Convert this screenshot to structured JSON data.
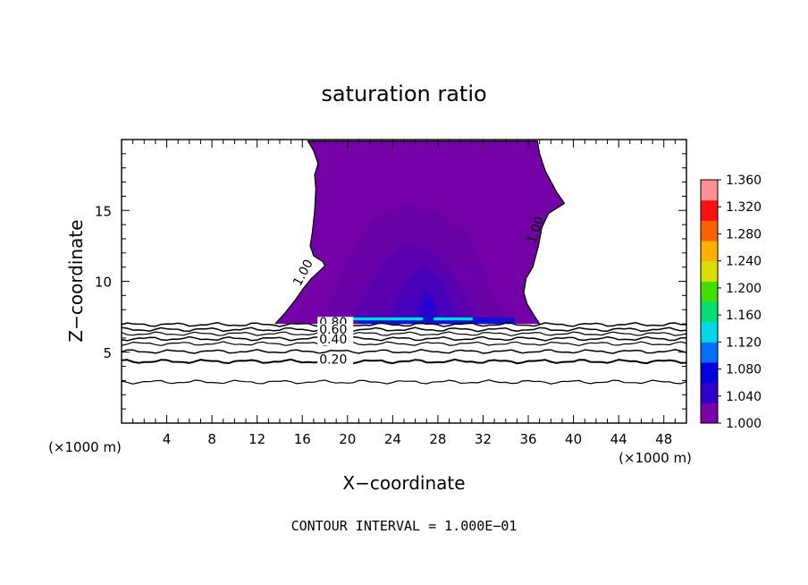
{
  "chart_data": {
    "type": "contour",
    "title": "saturation ratio",
    "xlabel": "X−coordinate",
    "ylabel": "Z−coordinate",
    "x_unit_left": "(×1000 m)",
    "x_unit_right": "(×1000 m)",
    "xlim": [
      0,
      50
    ],
    "ylim": [
      0,
      20
    ],
    "x_ticks": [
      4,
      8,
      12,
      16,
      20,
      24,
      28,
      32,
      36,
      40,
      44,
      48
    ],
    "y_ticks": [
      5,
      10,
      15
    ],
    "footer": "CONTOUR INTERVAL = 1.000E−01",
    "colorbar": {
      "ticks": [
        "1.360",
        "1.320",
        "1.280",
        "1.240",
        "1.200",
        "1.160",
        "1.120",
        "1.080",
        "1.040",
        "1.000"
      ],
      "min": 1.0,
      "max": 1.36
    },
    "contour_labels": [
      {
        "text": "1.00",
        "x": 15.8,
        "z": 9.6,
        "angle": -62
      },
      {
        "text": "1.00",
        "x": 36.6,
        "z": 12.6,
        "angle": -72
      },
      {
        "text": "0.80",
        "x": 17.5,
        "z": 6.8,
        "angle": 0
      },
      {
        "text": "0.60",
        "x": 17.5,
        "z": 6.3,
        "angle": 0
      },
      {
        "text": "0.40",
        "x": 17.5,
        "z": 5.6,
        "angle": 0
      },
      {
        "text": "0.20",
        "x": 17.5,
        "z": 4.2,
        "angle": 0
      }
    ],
    "contours_below": [
      {
        "level": 0.9,
        "z": 6.95,
        "w": 1.5
      },
      {
        "level": 0.8,
        "z": 6.6,
        "w": 1.5
      },
      {
        "level": 0.7,
        "z": 6.3,
        "w": 1.2
      },
      {
        "level": 0.6,
        "z": 5.95,
        "w": 1.5
      },
      {
        "level": 0.5,
        "z": 5.6,
        "w": 1.2
      },
      {
        "level": 0.4,
        "z": 5.05,
        "w": 1.5
      },
      {
        "level": 0.3,
        "z": 4.35,
        "w": 2
      },
      {
        "level": 0.2,
        "z": 2.9,
        "w": 1.2
      }
    ],
    "cloud_boundary": [
      [
        13.6,
        7.0
      ],
      [
        14.5,
        7.8
      ],
      [
        15.3,
        8.6
      ],
      [
        16.1,
        9.5
      ],
      [
        16.8,
        10.2
      ],
      [
        17.5,
        10.7
      ],
      [
        18.0,
        11.1
      ],
      [
        17.8,
        11.4
      ],
      [
        17.0,
        11.8
      ],
      [
        16.7,
        12.5
      ],
      [
        16.9,
        13.5
      ],
      [
        17.1,
        15.0
      ],
      [
        17.2,
        16.5
      ],
      [
        17.1,
        17.5
      ],
      [
        17.4,
        18.3
      ],
      [
        17.0,
        19.2
      ],
      [
        16.5,
        19.9
      ],
      [
        36.8,
        19.9
      ],
      [
        37.0,
        19.0
      ],
      [
        37.5,
        17.8
      ],
      [
        38.5,
        16.3
      ],
      [
        39.2,
        15.5
      ],
      [
        37.8,
        14.8
      ],
      [
        37.2,
        13.8
      ],
      [
        36.9,
        12.5
      ],
      [
        36.4,
        11.0
      ],
      [
        35.8,
        10.2
      ],
      [
        35.6,
        9.2
      ],
      [
        35.9,
        8.4
      ],
      [
        36.5,
        7.6
      ],
      [
        37.0,
        7.0
      ]
    ],
    "inner_levels": [
      {
        "value": 1.01,
        "color": "#6a00a8",
        "points": [
          [
            17.6,
            7.0
          ],
          [
            19.0,
            9.5
          ],
          [
            20.5,
            12.5
          ],
          [
            22.5,
            14.6
          ],
          [
            25.0,
            15.4
          ],
          [
            28.0,
            15.0
          ],
          [
            30.5,
            13.5
          ],
          [
            32.0,
            11.0
          ],
          [
            33.2,
            8.6
          ],
          [
            34.5,
            7.0
          ]
        ]
      },
      {
        "value": 1.02,
        "color": "#5a00b0",
        "points": [
          [
            20.0,
            7.0
          ],
          [
            21.5,
            9.2
          ],
          [
            23.0,
            11.3
          ],
          [
            25.0,
            12.6
          ],
          [
            27.0,
            12.4
          ],
          [
            29.0,
            11.0
          ],
          [
            30.5,
            9.0
          ],
          [
            32.0,
            7.0
          ]
        ]
      },
      {
        "value": 1.03,
        "color": "#4800b8",
        "points": [
          [
            23.5,
            7.0
          ],
          [
            24.3,
            8.6
          ],
          [
            25.5,
            10.4
          ],
          [
            26.8,
            11.0
          ],
          [
            28.3,
            10.2
          ],
          [
            29.2,
            8.5
          ],
          [
            29.8,
            7.0
          ]
        ]
      },
      {
        "value": 1.04,
        "color": "#3600c4",
        "points": [
          [
            25.8,
            7.0
          ],
          [
            26.2,
            8.5
          ],
          [
            26.8,
            9.5
          ],
          [
            27.6,
            9.0
          ],
          [
            28.0,
            8.0
          ],
          [
            28.1,
            7.0
          ]
        ]
      },
      {
        "value": 1.05,
        "color": "#2600d0",
        "points": [
          [
            26.5,
            7.2
          ],
          [
            26.7,
            8.4
          ],
          [
            27.2,
            8.8
          ],
          [
            27.7,
            8.2
          ],
          [
            27.6,
            7.2
          ]
        ]
      }
    ],
    "base_band": {
      "value": 1.06,
      "color": "#1010d8",
      "x_range": [
        21.0,
        34.8
      ],
      "z_range": [
        7.0,
        7.45
      ]
    },
    "cyan_strips": [
      {
        "value": 1.12,
        "color": "#00d8e8",
        "x_range": [
          19.6,
          26.7
        ],
        "z": 7.35
      },
      {
        "value": 1.12,
        "color": "#00d8e8",
        "x_range": [
          27.6,
          31.1
        ],
        "z": 7.35
      }
    ],
    "fill_colors": {
      "cloud": "#7400a8",
      "line": "#000000"
    },
    "colorbar_stops": [
      "#7a00a8",
      "#3000c8",
      "#0000e0",
      "#0070ff",
      "#00d8e8",
      "#00e070",
      "#40e000",
      "#d8e000",
      "#ffb000",
      "#ff6000",
      "#ff1010",
      "#ff9090"
    ]
  }
}
